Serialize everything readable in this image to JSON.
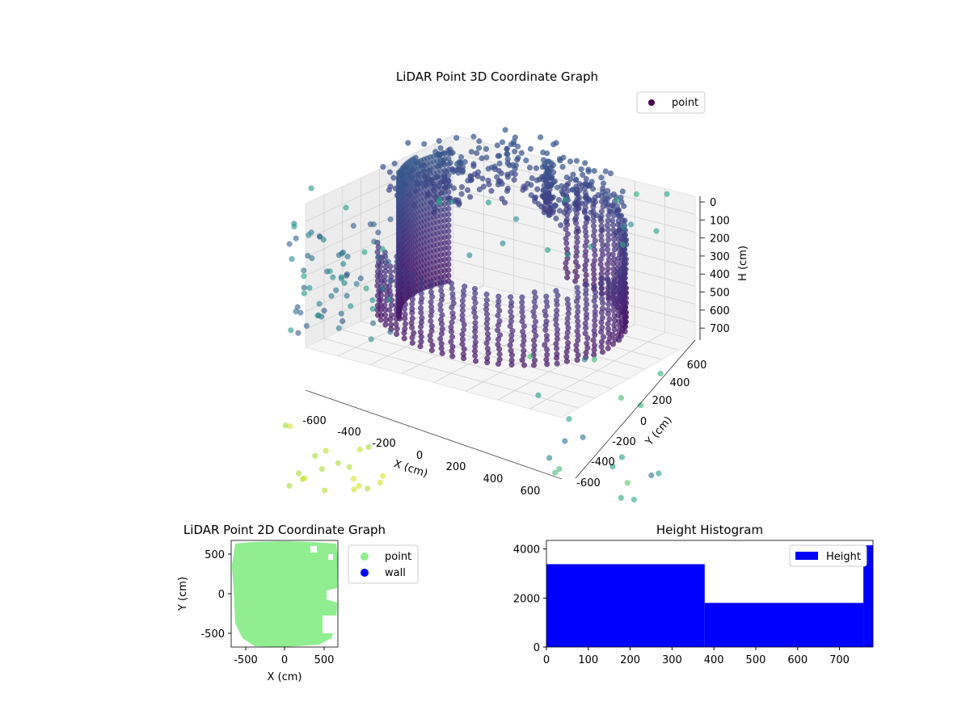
{
  "chart_data": [
    {
      "type": "scatter",
      "projection": "3d",
      "title": "LiDAR Point 3D Coordinate Graph",
      "xlabel": "X (cm)",
      "ylabel": "Y (cm)",
      "zlabel": "H (cm)",
      "x_ticks": [
        -600,
        -400,
        -200,
        0,
        200,
        400,
        600
      ],
      "y_ticks": [
        -600,
        -400,
        -200,
        0,
        200,
        400,
        600
      ],
      "z_ticks": [
        0,
        100,
        200,
        300,
        400,
        500,
        600,
        700
      ],
      "xlim": [
        -700,
        700
      ],
      "ylim": [
        -700,
        700
      ],
      "zlim": [
        780,
        0
      ],
      "z_inverted": true,
      "colormap": "viridis",
      "legend": {
        "entries": [
          "point"
        ],
        "loc": "upper right",
        "marker_color": "#440154"
      },
      "grid": true,
      "series": [
        {
          "name": "point",
          "shape": "cylindrical wall of points",
          "wall_radius": 560,
          "opening_from_angle_deg": 90,
          "opening_to_angle_deg": 220,
          "h_range": [
            0,
            780
          ]
        }
      ]
    },
    {
      "type": "scatter",
      "title": "LiDAR Point 2D Coordinate Graph",
      "xlabel": "X (cm)",
      "ylabel": "Y (cm)",
      "x_ticks": [
        -500,
        0,
        500
      ],
      "y_ticks": [
        -500,
        0,
        500
      ],
      "xlim": [
        -680,
        680
      ],
      "ylim": [
        -680,
        680
      ],
      "legend": {
        "entries": [
          "point",
          "wall"
        ],
        "loc": "outside right",
        "colors": [
          "#90ee90",
          "#0000ff"
        ]
      },
      "series": [
        {
          "name": "point",
          "color": "#90ee90"
        },
        {
          "name": "wall",
          "color": "#0000ff"
        }
      ]
    },
    {
      "type": "bar",
      "subtype": "histogram",
      "title": "Height Histogram",
      "x_ticks": [
        0,
        100,
        200,
        300,
        400,
        500,
        600,
        700
      ],
      "y_ticks": [
        0,
        2000,
        4000
      ],
      "xlim": [
        0,
        780
      ],
      "ylim": [
        0,
        4350
      ],
      "bins": [
        {
          "start": 0,
          "end": 378,
          "count": 3380
        },
        {
          "start": 378,
          "end": 757,
          "count": 1800
        },
        {
          "start": 757,
          "end": 780,
          "count": 4150
        }
      ],
      "color": "#0000ff",
      "legend": {
        "entries": [
          "Height"
        ],
        "loc": "upper right"
      },
      "series": [
        {
          "name": "Height"
        }
      ]
    }
  ]
}
